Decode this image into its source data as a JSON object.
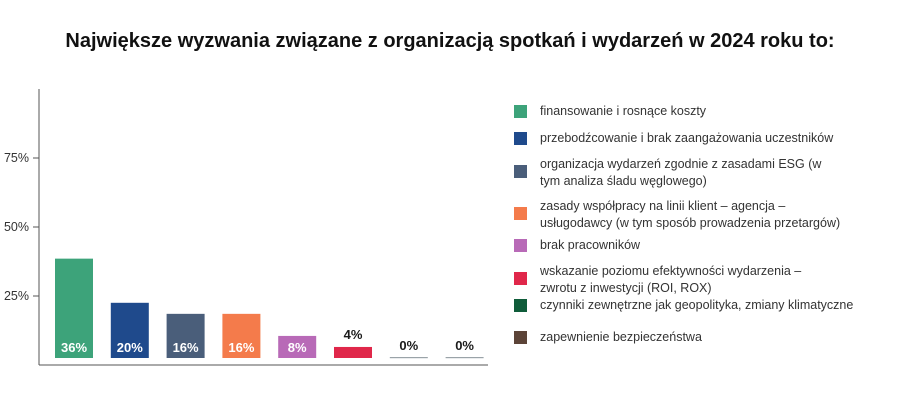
{
  "title": "Największe wyzwania związane z organizacją spotkań i wydarzeń w 2024 roku to:",
  "chart_data": {
    "type": "bar",
    "title": "Największe wyzwania związane z organizacją spotkań i wydarzeń w 2024 roku to:",
    "xlabel": "",
    "ylabel": "",
    "ylim": [
      0,
      100
    ],
    "y_ticks": [
      25,
      50,
      75
    ],
    "y_tick_labels": [
      "25%",
      "50%",
      "75%"
    ],
    "grid": false,
    "legend_placement": "right",
    "categories": [
      "finansowanie i rosnące koszty",
      "przebodźcowanie i brak zaangażowania uczestników",
      "organizacja wydarzeń zgodnie z zasadami ESG (w tym analiza śladu węglowego)",
      "zasady współpracy na linii klient – agencja – usługodawcy (w tym sposób prowadzenia przetargów)",
      "brak pracowników",
      "wskazanie poziomu efektywności wydarzenia – zwrotu z inwestycji (ROI, ROX)",
      "czynniki zewnętrzne jak geopolityka, zmiany klimatyczne",
      "zapewnienie bezpieczeństwa"
    ],
    "legend_labels": [
      [
        "finansowanie i rosnące koszty"
      ],
      [
        "przebodźcowanie i brak zaangażowania uczestników"
      ],
      [
        "organizacja wydarzeń zgodnie z zasadami ESG (w",
        "tym analiza śladu węglowego)"
      ],
      [
        "zasady współpracy na linii klient – agencja –",
        "usługodawcy (w tym sposób prowadzenia przetargów)"
      ],
      [
        "brak pracowników"
      ],
      [
        "wskazanie poziomu efektywności wydarzenia –",
        "zwrotu z inwestycji (ROI, ROX)"
      ],
      [
        "czynniki zewnętrzne jak geopolityka, zmiany klimatyczne"
      ],
      [
        "zapewnienie bezpieczeństwa"
      ]
    ],
    "values": [
      36,
      20,
      16,
      16,
      8,
      4,
      0,
      0
    ],
    "value_labels": [
      "36%",
      "20%",
      "16%",
      "16%",
      "8%",
      "4%",
      "0%",
      "0%"
    ],
    "colors": [
      "#3DA37A",
      "#1F4A8C",
      "#4A5E7A",
      "#F47B4B",
      "#B86AB7",
      "#E0274A",
      "#0F5C3A",
      "#5C4438"
    ]
  }
}
